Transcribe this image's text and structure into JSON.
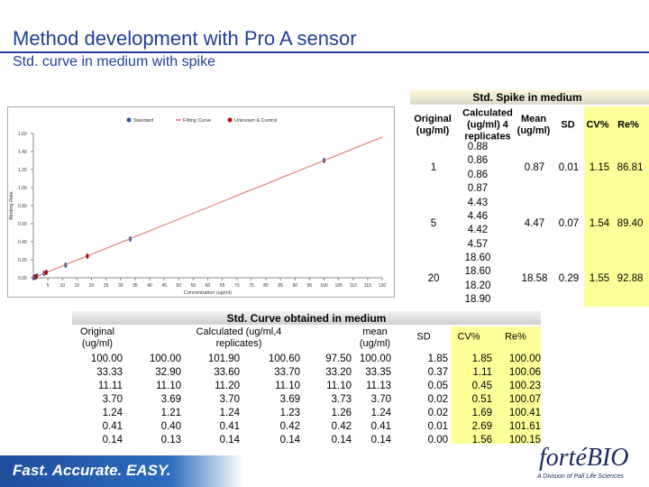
{
  "header": {
    "title": "Method development with Pro A sensor",
    "subtitle": "Std. curve in medium with spike"
  },
  "chart_data": {
    "type": "scatter",
    "xlabel": "Concentration (ug/ml)",
    "ylabel": "Binding Rate",
    "xlim": [
      0,
      120
    ],
    "xticks": [
      5,
      10,
      15,
      20,
      25,
      30,
      35,
      40,
      45,
      50,
      55,
      60,
      65,
      70,
      75,
      80,
      85,
      90,
      95,
      100,
      105,
      110,
      115,
      120
    ],
    "ylim": [
      0,
      1.6
    ],
    "yticks": [
      {
        "value": 0,
        "label": "0.00"
      },
      {
        "value": 0.2,
        "label": "0.20"
      },
      {
        "value": 0.4,
        "label": "0.40"
      },
      {
        "value": 0.6,
        "label": "0.60"
      },
      {
        "value": 0.8,
        "label": "0.80"
      },
      {
        "value": 1.0,
        "label": "1.00"
      },
      {
        "value": 1.2,
        "label": "1.20"
      },
      {
        "value": 1.4,
        "label": "1.40"
      },
      {
        "value": 1.6,
        "label": "1.60"
      }
    ],
    "grid": false,
    "series": [
      {
        "name": "Standard",
        "color": "#2f5597",
        "kind": "points",
        "x": [
          100,
          33.33,
          11.11,
          3.7,
          1.24,
          0.41,
          0.14
        ],
        "values": [
          1.3,
          0.43,
          0.14,
          0.05,
          0.02,
          0.01,
          0.0
        ]
      },
      {
        "name": "Fitting Curve",
        "color": "#e0706a",
        "kind": "line",
        "x": [
          0,
          120
        ],
        "values": [
          0,
          1.56
        ]
      },
      {
        "name": "Unknown & Control",
        "color": "#c00000",
        "kind": "points",
        "x": [
          0.87,
          4.47,
          18.58
        ],
        "values": [
          0.01,
          0.06,
          0.24
        ]
      }
    ]
  },
  "spike_table": {
    "title": "Std. Spike in medium",
    "columns": [
      "Original (ug/ml)",
      "Calculated (ug/ml) 4 replicates",
      "Mean (ug/ml)",
      "SD",
      "CV%",
      "Re%"
    ],
    "rows": [
      {
        "original": "1",
        "replicates": [
          "0.88",
          "0.86",
          "0.86",
          "0.87"
        ],
        "mean": "0.87",
        "sd": "0.01",
        "cv": "1.15",
        "re": "86.81"
      },
      {
        "original": "5",
        "replicates": [
          "4.43",
          "4.46",
          "4.42",
          "4.57"
        ],
        "mean": "4.47",
        "sd": "0.07",
        "cv": "1.54",
        "re": "89.40"
      },
      {
        "original": "20",
        "replicates": [
          "18.60",
          "18.60",
          "18.20",
          "18.90"
        ],
        "mean": "18.58",
        "sd": "0.29",
        "cv": "1.55",
        "re": "92.88"
      }
    ]
  },
  "curve_table": {
    "title": "Std. Curve obtained in medium",
    "columns": [
      "Original (ug/ml)",
      "Calculated (ug/ml,4 replicates)",
      "mean (ug/ml)",
      "SD",
      "CV%",
      "Re%"
    ],
    "rows": [
      [
        "100.00",
        "100.00",
        "101.90",
        "100.60",
        "97.50",
        "100.00",
        "1.85",
        "1.85",
        "100.00"
      ],
      [
        "33.33",
        "32.90",
        "33.60",
        "33.70",
        "33.20",
        "33.35",
        "0.37",
        "1.11",
        "100.06"
      ],
      [
        "11.11",
        "11.10",
        "11.20",
        "11.10",
        "11.10",
        "11.13",
        "0.05",
        "0.45",
        "100.23"
      ],
      [
        "3.70",
        "3.69",
        "3.70",
        "3.69",
        "3.73",
        "3.70",
        "0.02",
        "0.51",
        "100.07"
      ],
      [
        "1.24",
        "1.21",
        "1.24",
        "1.23",
        "1.26",
        "1.24",
        "0.02",
        "1.69",
        "100.41"
      ],
      [
        "0.41",
        "0.40",
        "0.41",
        "0.42",
        "0.42",
        "0.41",
        "0.01",
        "2.69",
        "101.61"
      ],
      [
        "0.14",
        "0.13",
        "0.14",
        "0.14",
        "0.14",
        "0.14",
        "0.00",
        "1.56",
        "100.15"
      ]
    ]
  },
  "footer": {
    "slogan": "Fast. Accurate. EASY.",
    "logo": "fortéBIO",
    "division": "A Division of Pall Life Sciences"
  }
}
